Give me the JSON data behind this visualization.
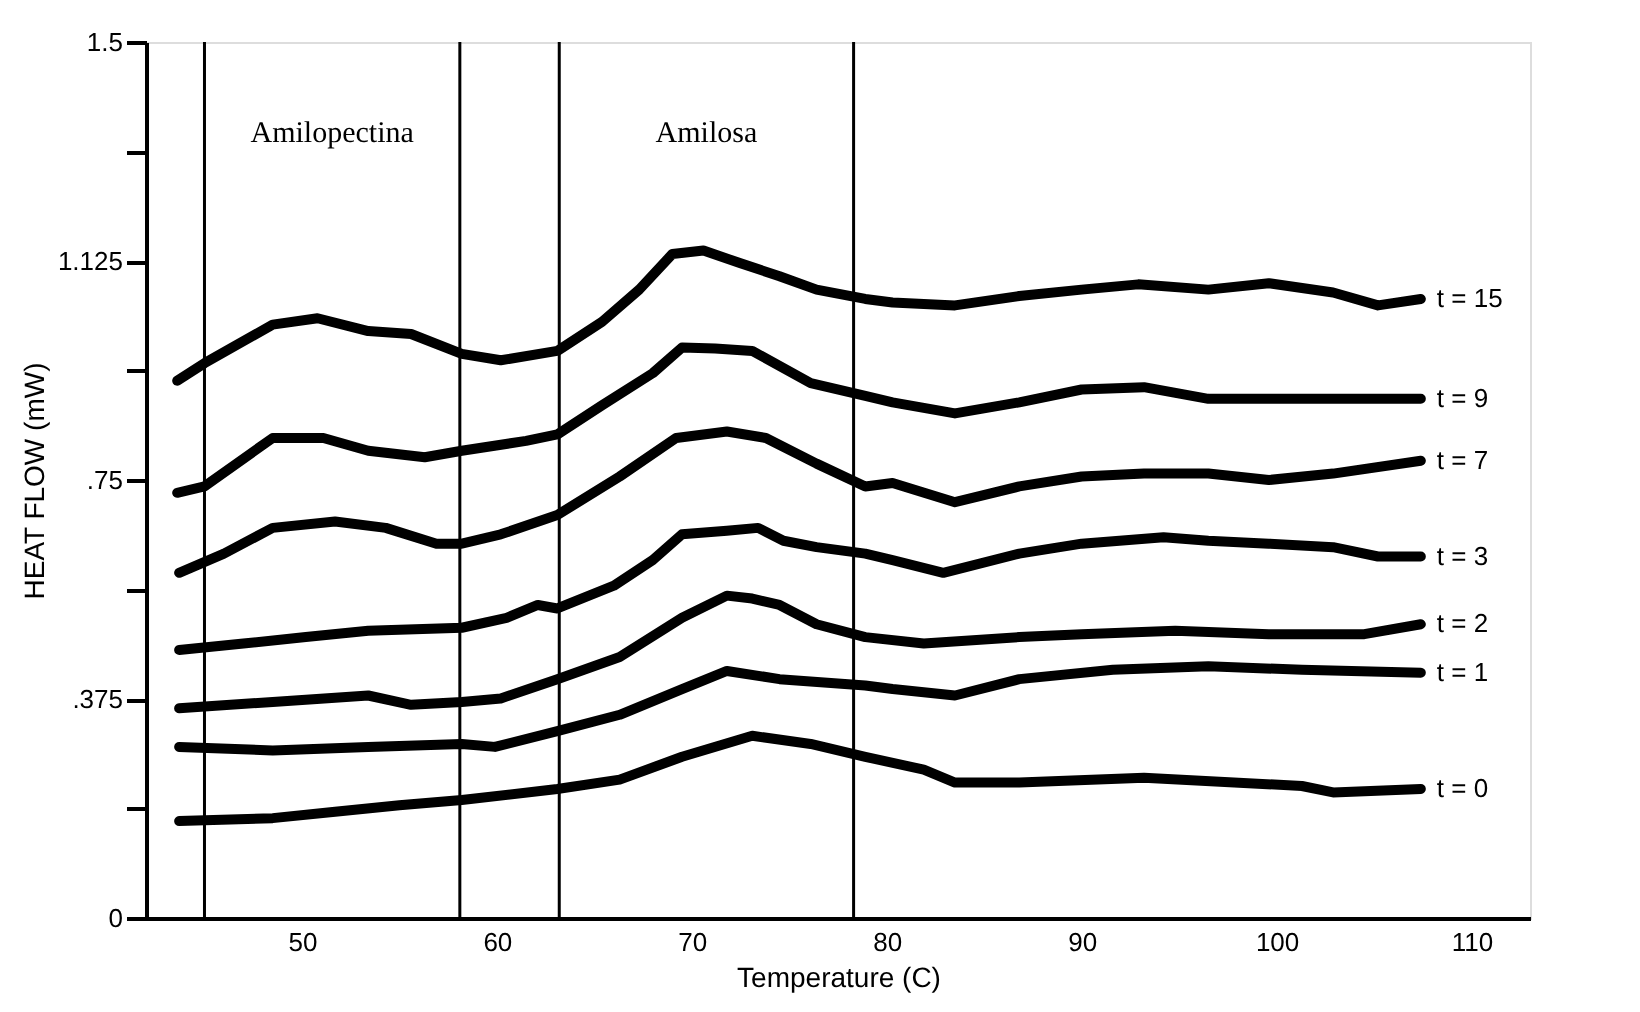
{
  "chart_data": {
    "type": "line",
    "xlabel": "Temperature (C)",
    "ylabel": "HEAT FLOW (mW)",
    "xlim": [
      42,
      113
    ],
    "xticks": [
      50,
      60,
      70,
      80,
      90,
      100,
      110
    ],
    "ylim": [
      0,
      1.5
    ],
    "yticks": [
      0,
      {
        "value": 0.1875,
        "label": null
      },
      {
        "value": 0.375,
        "label": ".375"
      },
      {
        "value": 0.5625,
        "label": null
      },
      {
        "value": 0.75,
        "label": ".75"
      },
      {
        "value": 0.9375,
        "label": null
      },
      {
        "value": 1.125,
        "label": "1.125"
      },
      {
        "value": 1.3125,
        "label": null
      },
      1.5
    ],
    "grid": false,
    "legend": false,
    "line_style": "solid",
    "marker": "none",
    "ref_lines": [
      {
        "axis": "x",
        "value": 45,
        "color": "#000000"
      },
      {
        "axis": "x",
        "value": 58.1,
        "color": "#000000"
      },
      {
        "axis": "x",
        "value": 63.2,
        "color": "#000000"
      },
      {
        "axis": "x",
        "value": 78.3,
        "color": "#000000"
      }
    ],
    "annotations": [
      "Amilopectina",
      "Amilosa"
    ],
    "series": [
      {
        "name": "t = 15",
        "color": "#000000",
        "x": [
          43.6,
          45,
          48.5,
          50.8,
          53.4,
          55.6,
          58.2,
          60.2,
          63.1,
          65.4,
          67.3,
          69.0,
          70.6,
          72.5,
          74.5,
          76.4,
          78.9,
          80.3,
          83.5,
          86.8,
          90.0,
          92.9,
          96.5,
          99.6,
          102.9,
          105.2,
          107.4
        ],
        "values": [
          0.92,
          0.95,
          1.016,
          1.027,
          1.005,
          1.0,
          0.966,
          0.955,
          0.971,
          1.021,
          1.076,
          1.137,
          1.143,
          1.121,
          1.099,
          1.076,
          1.06,
          1.054,
          1.049,
          1.065,
          1.076,
          1.085,
          1.076,
          1.087,
          1.071,
          1.049,
          1.06
        ]
      },
      {
        "name": "t = 9",
        "color": "#000000",
        "x": [
          43.6,
          45,
          48.5,
          51.1,
          53.4,
          56.3,
          58.2,
          61.5,
          63.1,
          65.4,
          68.0,
          69.5,
          71.2,
          73.1,
          76.1,
          78.9,
          80.3,
          83.5,
          86.8,
          90.0,
          93.2,
          96.5,
          99.6,
          102.9,
          107.4
        ],
        "values": [
          0.728,
          0.739,
          0.822,
          0.822,
          0.8,
          0.789,
          0.8,
          0.817,
          0.828,
          0.878,
          0.933,
          0.977,
          0.975,
          0.971,
          0.916,
          0.894,
          0.883,
          0.864,
          0.883,
          0.905,
          0.909,
          0.889,
          0.889,
          0.889,
          0.889
        ]
      },
      {
        "name": "t = 7",
        "color": "#000000",
        "x": [
          43.7,
          46,
          48.5,
          51.7,
          54.3,
          56.9,
          58.2,
          60.2,
          63.1,
          66.3,
          69.2,
          71.8,
          73.8,
          76.4,
          78.9,
          80.3,
          83.5,
          86.8,
          90,
          93.2,
          96.5,
          99.6,
          102.9,
          107.4
        ],
        "values": [
          0.591,
          0.624,
          0.668,
          0.679,
          0.668,
          0.641,
          0.641,
          0.657,
          0.69,
          0.756,
          0.822,
          0.833,
          0.822,
          0.778,
          0.739,
          0.745,
          0.712,
          0.739,
          0.756,
          0.761,
          0.761,
          0.75,
          0.761,
          0.783
        ]
      },
      {
        "name": "t = 3",
        "color": "#000000",
        "x": [
          43.7,
          47,
          50.2,
          53.4,
          58.2,
          60.5,
          62.1,
          63.1,
          66.0,
          68,
          69.5,
          71.8,
          73.4,
          74.7,
          76.4,
          78.9,
          80.3,
          82.9,
          86.8,
          90,
          94.2,
          96.5,
          99.6,
          102.9,
          105.2,
          107.4
        ],
        "values": [
          0.459,
          0.47,
          0.481,
          0.492,
          0.497,
          0.514,
          0.536,
          0.53,
          0.569,
          0.613,
          0.657,
          0.663,
          0.668,
          0.646,
          0.635,
          0.624,
          0.613,
          0.591,
          0.624,
          0.641,
          0.652,
          0.646,
          0.641,
          0.635,
          0.619,
          0.619
        ]
      },
      {
        "name": "t = 2",
        "color": "#000000",
        "x": [
          43.7,
          48.5,
          53.4,
          55.6,
          58.2,
          60.2,
          63.1,
          66.3,
          69.5,
          71.8,
          73.1,
          74.5,
          76.4,
          78.9,
          81.9,
          86.8,
          90,
          94.8,
          99.6,
          104.5,
          107.4
        ],
        "values": [
          0.359,
          0.37,
          0.381,
          0.365,
          0.37,
          0.376,
          0.409,
          0.447,
          0.514,
          0.552,
          0.547,
          0.536,
          0.503,
          0.481,
          0.47,
          0.481,
          0.486,
          0.492,
          0.486,
          0.486,
          0.503
        ]
      },
      {
        "name": "t = 1",
        "color": "#000000",
        "x": [
          43.7,
          48.5,
          53.4,
          58.2,
          59.9,
          63.1,
          66.3,
          69.5,
          71.8,
          74.5,
          78.9,
          80.3,
          83.5,
          86.8,
          91.6,
          96.5,
          101.3,
          107.4
        ],
        "values": [
          0.293,
          0.287,
          0.293,
          0.298,
          0.293,
          0.32,
          0.348,
          0.392,
          0.423,
          0.409,
          0.398,
          0.392,
          0.381,
          0.409,
          0.425,
          0.431,
          0.425,
          0.42
        ]
      },
      {
        "name": "t = 0",
        "color": "#000000",
        "x": [
          43.7,
          48.5,
          51.7,
          55,
          58.2,
          63.1,
          66.3,
          69.5,
          73.1,
          76.1,
          78.9,
          81.9,
          83.5,
          86.8,
          93.2,
          101.3,
          102.9,
          107.4
        ],
        "values": [
          0.166,
          0.171,
          0.182,
          0.193,
          0.202,
          0.221,
          0.237,
          0.276,
          0.312,
          0.298,
          0.276,
          0.254,
          0.232,
          0.232,
          0.24,
          0.226,
          0.215,
          0.221
        ]
      }
    ]
  }
}
